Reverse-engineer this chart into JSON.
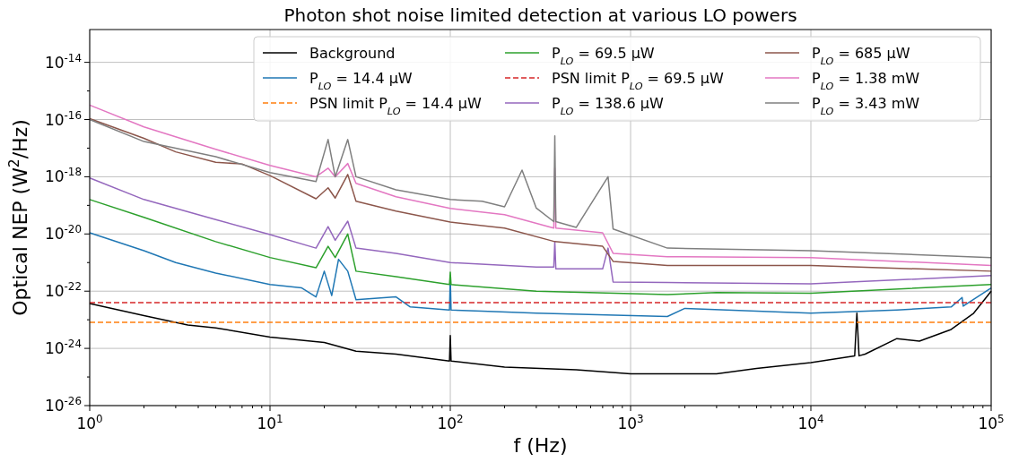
{
  "chart_data": {
    "type": "line",
    "title": "Photon shot noise limited detection at various LO powers",
    "xlabel": "f (Hz)",
    "ylabel": "Optical NEP (W$^{2}$/Hz)",
    "log": "xy",
    "grid": true,
    "legend": "top right",
    "xlim": [
      1,
      100000
    ],
    "ylim": [
      1e-26,
      1.4e-13
    ],
    "xticks": [
      {
        "value": 1,
        "label": "10$^{0}$"
      },
      {
        "value": 10,
        "label": "10$^{1}$"
      },
      {
        "value": 100,
        "label": "10$^{2}$"
      },
      {
        "value": 1000,
        "label": "10$^{3}$"
      },
      {
        "value": 10000,
        "label": "10$^{4}$"
      },
      {
        "value": 100000,
        "label": "10$^{5}$"
      }
    ],
    "yticks": [
      {
        "value": 1e-26,
        "label": "10$^{-26}$"
      },
      {
        "value": 1e-25,
        "label": null
      },
      {
        "value": 1e-24,
        "label": "10$^{-24}$"
      },
      {
        "value": 1e-23,
        "label": null
      },
      {
        "value": 1e-22,
        "label": "10$^{-22}$"
      },
      {
        "value": 1e-21,
        "label": null
      },
      {
        "value": 1e-20,
        "label": "10$^{-20}$"
      },
      {
        "value": 1e-19,
        "label": null
      },
      {
        "value": 1e-18,
        "label": "10$^{-18}$"
      },
      {
        "value": 1e-17,
        "label": null
      },
      {
        "value": 1e-16,
        "label": "10$^{-16}$"
      },
      {
        "value": 1e-15,
        "label": null
      },
      {
        "value": 1e-14,
        "label": "10$^{-14}$"
      }
    ],
    "series": [
      {
        "name": "Background",
        "color": "#000000",
        "line_style": "solid",
        "x": [
          1,
          2,
          3.5,
          5,
          10,
          20,
          30,
          50,
          99,
          100,
          101,
          200,
          500,
          1000,
          1600,
          3000,
          5000,
          10000,
          17500,
          18000,
          18500,
          20000,
          30000,
          40000,
          60000,
          80000,
          100000
        ],
        "values": [
          3.7e-23,
          1.4e-23,
          6.6e-24,
          5.2e-24,
          2.5e-24,
          1.6e-24,
          8e-25,
          6.3e-25,
          3.6e-25,
          2.8e-24,
          3.6e-25,
          2.2e-25,
          1.8e-25,
          1.3e-25,
          1.3e-25,
          1.3e-25,
          2e-25,
          3.2e-25,
          5.5e-25,
          1.7e-23,
          5.5e-25,
          6.3e-25,
          2.2e-24,
          1.8e-24,
          4.6e-24,
          1.7e-23,
          1e-22
        ]
      },
      {
        "name": "P$_{LO}$ = 14.4 μW",
        "color": "#1f77b4",
        "line_style": "solid",
        "x": [
          1,
          2,
          3,
          5,
          10,
          15,
          18,
          20,
          22,
          24,
          27,
          30,
          50,
          60,
          99,
          100,
          101,
          150,
          300,
          1600,
          2000,
          10000,
          30000,
          60000,
          69000,
          70000,
          100000
        ],
        "values": [
          1.1e-20,
          2.6e-21,
          1e-21,
          4.3e-22,
          1.7e-22,
          1.3e-22,
          6.3e-23,
          5e-22,
          7e-23,
          1.3e-21,
          5e-22,
          5e-23,
          6.3e-23,
          2.8e-23,
          2.2e-23,
          3.2e-22,
          2.2e-23,
          2e-23,
          1.7e-23,
          1.3e-23,
          2.5e-23,
          1.7e-23,
          2.2e-23,
          2.8e-23,
          6e-23,
          3e-23,
          1.3e-22
        ]
      },
      {
        "name": "PSN limit P$_{LO}$ = 14.4 μW",
        "color": "#ff7f0e",
        "line_style": "dashed",
        "x": [
          1,
          100000
        ],
        "values": [
          8.1e-24,
          8.1e-24
        ]
      },
      {
        "name": "P$_{LO}$ = 69.5 μW",
        "color": "#2ca02c",
        "line_style": "solid",
        "x": [
          1,
          2,
          5,
          10,
          18,
          21,
          23,
          27,
          30,
          50,
          99,
          100,
          101,
          300,
          1600,
          3000,
          10000,
          100000
        ],
        "values": [
          1.6e-19,
          3.8e-20,
          5.4e-21,
          1.5e-21,
          6.6e-22,
          3.7e-21,
          1.5e-21,
          1e-20,
          5e-22,
          3.2e-22,
          1.7e-22,
          4.6e-22,
          1.7e-22,
          1e-22,
          7.6e-23,
          9e-23,
          8.5e-23,
          1.7e-22
        ]
      },
      {
        "name": "PSN limit P$_{LO}$ = 69.5 μW",
        "color": "#d62728",
        "line_style": "dashed",
        "x": [
          1,
          100000
        ],
        "values": [
          4e-23,
          4e-23
        ]
      },
      {
        "name": "P$_{LO}$ = 138.6 μW",
        "color": "#9467bd",
        "line_style": "solid",
        "x": [
          1,
          2,
          5,
          10,
          18,
          21,
          23,
          27,
          30,
          50,
          100,
          300,
          375,
          380,
          385,
          700,
          750,
          800,
          1600,
          10000,
          100000
        ],
        "values": [
          9.1e-19,
          1.6e-19,
          3.2e-20,
          9.5e-21,
          3.2e-21,
          1.8e-20,
          6e-21,
          2.8e-20,
          3.2e-21,
          2.1e-21,
          1e-21,
          7e-22,
          7e-22,
          5.4e-21,
          6e-22,
          6e-22,
          3.2e-21,
          2.1e-22,
          2e-22,
          1.8e-22,
          3.5e-22
        ]
      },
      {
        "name": "P$_{LO}$ = 685 μW",
        "color": "#8c564b",
        "line_style": "solid",
        "x": [
          1,
          2,
          3,
          5,
          7,
          10,
          18,
          21,
          23,
          27,
          30,
          50,
          100,
          200,
          380,
          700,
          800,
          1600,
          10000,
          100000
        ],
        "values": [
          1.07e-16,
          2.2e-17,
          7.4e-18,
          3.2e-18,
          2.8e-18,
          1.1e-18,
          1.7e-19,
          4.1e-19,
          1.8e-19,
          1.2e-18,
          1.4e-19,
          6.3e-20,
          2.6e-20,
          1.6e-20,
          5.4e-21,
          3.7e-21,
          1.1e-21,
          7.9e-22,
          7.9e-22,
          5e-22
        ]
      },
      {
        "name": "P$_{LO}$ = 1.38 mW",
        "color": "#e377c2",
        "line_style": "solid",
        "x": [
          1,
          2,
          5,
          10,
          18,
          21,
          23,
          27,
          30,
          50,
          100,
          200,
          375,
          380,
          385,
          700,
          800,
          1600,
          10000,
          100000
        ],
        "values": [
          3.2e-16,
          5.5e-17,
          9.1e-18,
          2.5e-18,
          1e-18,
          2e-18,
          1e-18,
          2.9e-18,
          5.9e-19,
          2e-19,
          7.8e-20,
          4.7e-20,
          1.6e-20,
          2e-18,
          1.6e-20,
          1.1e-20,
          2.1e-21,
          1.6e-21,
          1.5e-21,
          7.9e-22
        ]
      },
      {
        "name": "P$_{LO}$ = 3.43 mW",
        "color": "#7f7f7f",
        "line_style": "solid",
        "x": [
          1,
          2,
          5,
          10,
          18,
          21,
          23,
          27,
          30,
          50,
          100,
          150,
          200,
          250,
          300,
          375,
          380,
          385,
          500,
          750,
          800,
          1600,
          10000,
          100000
        ],
        "values": [
          1e-16,
          1.7e-17,
          5e-18,
          1.4e-18,
          6.8e-19,
          2e-17,
          1e-18,
          2e-17,
          1e-18,
          3.5e-19,
          1.6e-19,
          1.4e-19,
          8.9e-20,
          1.7e-18,
          8e-20,
          2.7e-20,
          2.7e-17,
          2.7e-20,
          1.7e-20,
          1e-18,
          1.5e-20,
          3.2e-21,
          2.6e-21,
          1.5e-21
        ]
      }
    ]
  }
}
